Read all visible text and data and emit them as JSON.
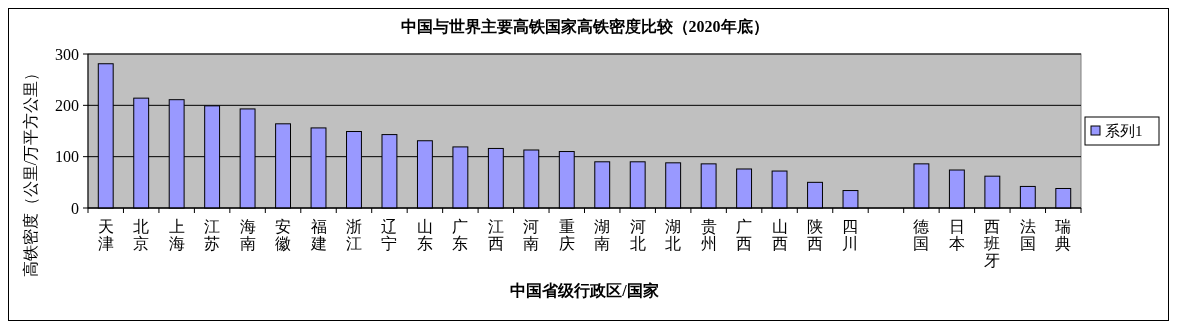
{
  "chart_data": {
    "type": "bar",
    "title": "中国与世界主要高铁国家高铁密度比较（2020年底）",
    "xlabel": "中国省级行政区/国家",
    "ylabel": "高铁密度（公里/万平方公里）",
    "categories": [
      "天津",
      "北京",
      "上海",
      "江苏",
      "海南",
      "安徽",
      "福建",
      "浙江",
      "辽宁",
      "山东",
      "广东",
      "江西",
      "河南",
      "重庆",
      "湖南",
      "河北",
      "湖北",
      "贵州",
      "广西",
      "山西",
      "陕西",
      "四川",
      null,
      "德国",
      "日本",
      "西班牙",
      "法国",
      "瑞典"
    ],
    "series": [
      {
        "name": "系列1",
        "color": "#9999ff",
        "values": [
          281,
          214,
          211,
          199,
          193,
          164,
          156,
          149,
          143,
          131,
          119,
          116,
          113,
          110,
          90,
          90,
          88,
          86,
          76,
          72,
          50,
          34,
          null,
          86,
          74,
          62,
          42,
          38
        ]
      }
    ],
    "ylim": [
      0,
      300
    ],
    "yticks": [
      0,
      100,
      200,
      300
    ],
    "grid": "y",
    "legend": "right"
  }
}
